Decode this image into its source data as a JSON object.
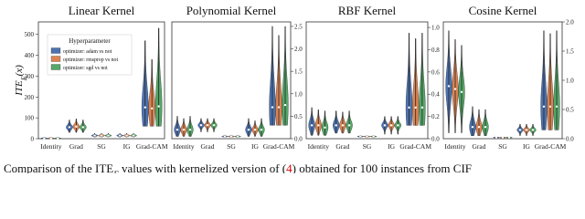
{
  "chart_data": [
    {
      "type": "violin",
      "title": "Linear Kernel",
      "ylabel": [
        "ITE",
        "E",
        "(x)"
      ],
      "categories": [
        "Identity",
        "Grad",
        "SG",
        "IG",
        "Grad-CAM"
      ],
      "ylim": [
        0,
        560
      ],
      "yticks": [
        0,
        100,
        200,
        300,
        400,
        500
      ],
      "ytick_side": "left",
      "legend": "upper left",
      "legend_title": "Hyperparameter",
      "series": [
        {
          "name": "optimizer: adam vs not",
          "color": "#4c72b0",
          "medians": [
            2,
            55,
            15,
            15,
            150
          ],
          "mins": [
            0,
            30,
            8,
            8,
            60
          ],
          "maxs": [
            8,
            90,
            25,
            25,
            470
          ]
        },
        {
          "name": "optimizer: rmsprop vs not",
          "color": "#dd8452",
          "medians": [
            2,
            58,
            15,
            15,
            145
          ],
          "mins": [
            0,
            30,
            8,
            8,
            60
          ],
          "maxs": [
            8,
            95,
            25,
            25,
            380
          ]
        },
        {
          "name": "optimizer: sgd vs not",
          "color": "#55a868",
          "medians": [
            2,
            55,
            15,
            15,
            155
          ],
          "mins": [
            0,
            30,
            8,
            8,
            60
          ],
          "maxs": [
            8,
            90,
            25,
            25,
            530
          ]
        }
      ]
    },
    {
      "type": "violin",
      "title": "Polynomial Kernel",
      "categories": [
        "Identity",
        "Grad",
        "SG",
        "IG",
        "Grad-CAM"
      ],
      "ylim": [
        0,
        2.6
      ],
      "yticks": [
        {
          "value": 0,
          "label": "0.0"
        },
        0.5,
        {
          "value": 1,
          "label": "1.0"
        },
        1.5,
        {
          "value": 2,
          "label": "2.0"
        },
        2.5
      ],
      "ytick_side": "right",
      "series": [
        {
          "color": "#4c72b0",
          "medians": [
            0.2,
            0.3,
            0.05,
            0.2,
            0.7
          ],
          "mins": [
            0.05,
            0.15,
            0.03,
            0.05,
            0.3
          ],
          "maxs": [
            0.5,
            0.45,
            0.08,
            0.45,
            2.5
          ]
        },
        {
          "color": "#dd8452",
          "medians": [
            0.2,
            0.3,
            0.05,
            0.2,
            0.7
          ],
          "mins": [
            0.05,
            0.15,
            0.03,
            0.05,
            0.3
          ],
          "maxs": [
            0.45,
            0.45,
            0.08,
            0.4,
            2.3
          ]
        },
        {
          "color": "#55a868",
          "medians": [
            0.2,
            0.3,
            0.05,
            0.2,
            0.75
          ],
          "mins": [
            0.05,
            0.15,
            0.03,
            0.05,
            0.3
          ],
          "maxs": [
            0.5,
            0.45,
            0.08,
            0.45,
            2.5
          ]
        }
      ]
    },
    {
      "type": "violin",
      "title": "RBF Kernel",
      "categories": [
        "Identity",
        "Grad",
        "SG",
        "IG",
        "Grad-CAM"
      ],
      "ylim": [
        0,
        1.05
      ],
      "yticks": [
        {
          "value": 0,
          "label": "0.0"
        },
        0.2,
        0.4,
        0.6,
        0.8,
        {
          "value": 1,
          "label": "1.0"
        }
      ],
      "ytick_side": "right",
      "series": [
        {
          "color": "#4c72b0",
          "medians": [
            0.12,
            0.12,
            0.02,
            0.12,
            0.28
          ],
          "mins": [
            0.03,
            0.05,
            0.01,
            0.04,
            0.12
          ],
          "maxs": [
            0.28,
            0.25,
            0.03,
            0.2,
            0.95
          ]
        },
        {
          "color": "#dd8452",
          "medians": [
            0.12,
            0.12,
            0.02,
            0.12,
            0.28
          ],
          "mins": [
            0.03,
            0.05,
            0.01,
            0.04,
            0.12
          ],
          "maxs": [
            0.26,
            0.24,
            0.03,
            0.2,
            0.9
          ]
        },
        {
          "color": "#55a868",
          "medians": [
            0.1,
            0.12,
            0.02,
            0.12,
            0.28
          ],
          "mins": [
            0.03,
            0.05,
            0.01,
            0.04,
            0.12
          ],
          "maxs": [
            0.25,
            0.25,
            0.03,
            0.2,
            0.95
          ]
        }
      ]
    },
    {
      "type": "violin",
      "title": "Cosine Kernel",
      "categories": [
        "Identity",
        "Grad",
        "SG",
        "IG",
        "Grad-CAM"
      ],
      "ylim": [
        0,
        2.0
      ],
      "yticks": [
        {
          "value": 0,
          "label": "0.0"
        },
        0.5,
        {
          "value": 1,
          "label": "1.0"
        },
        1.5,
        {
          "value": 2,
          "label": "2.0"
        }
      ],
      "ytick_side": "right",
      "series": [
        {
          "color": "#4c72b0",
          "medians": [
            0.9,
            0.2,
            0.02,
            0.15,
            0.55
          ],
          "mins": [
            0.1,
            0.05,
            0,
            0.05,
            0.15
          ],
          "maxs": [
            1.85,
            0.55,
            0.03,
            0.25,
            1.85
          ]
        },
        {
          "color": "#dd8452",
          "medians": [
            0.85,
            0.2,
            0.02,
            0.15,
            0.55
          ],
          "mins": [
            0.1,
            0.05,
            0,
            0.05,
            0.15
          ],
          "maxs": [
            1.7,
            0.5,
            0.03,
            0.25,
            1.8
          ]
        },
        {
          "color": "#55a868",
          "medians": [
            0.8,
            0.2,
            0.02,
            0.15,
            0.55
          ],
          "mins": [
            0.1,
            0.05,
            0,
            0.05,
            0.15
          ],
          "maxs": [
            1.6,
            0.5,
            0.03,
            0.25,
            1.85
          ]
        }
      ]
    }
  ],
  "caption": [
    "Comparison of the ITE",
    "E",
    " values with kernelized version of (",
    "4",
    ") obtained for 100 instances from CIF"
  ]
}
